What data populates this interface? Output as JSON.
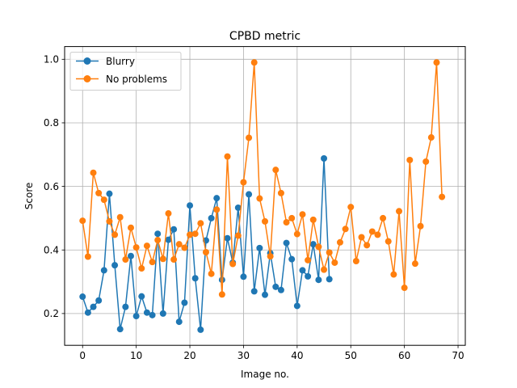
{
  "chart_data": {
    "type": "line",
    "title": "CPBD metric",
    "xlabel": "Image no.",
    "ylabel": "Score",
    "xlim": [
      -3.35,
      71.35
    ],
    "ylim": [
      0.1,
      1.04
    ],
    "xticks": [
      0,
      10,
      20,
      30,
      40,
      50,
      60,
      70
    ],
    "yticks": [
      0.2,
      0.4,
      0.6,
      0.8,
      1.0
    ],
    "xtick_labels": [
      "0",
      "10",
      "20",
      "30",
      "40",
      "50",
      "60",
      "70"
    ],
    "ytick_labels": [
      "0.2",
      "0.4",
      "0.6",
      "0.8",
      "1.0"
    ],
    "grid": true,
    "legend_position": "top-left",
    "series": [
      {
        "name": "Blurry",
        "color": "#1f77b4",
        "marker": "circle",
        "x": [
          0,
          1,
          2,
          3,
          4,
          5,
          6,
          7,
          8,
          9,
          10,
          11,
          12,
          13,
          14,
          15,
          16,
          17,
          18,
          19,
          20,
          21,
          22,
          23,
          24,
          25,
          26,
          27,
          28,
          29,
          30,
          31,
          32,
          33,
          34,
          35,
          36,
          37,
          38,
          39,
          40,
          41,
          42,
          43,
          44,
          45,
          46
        ],
        "y": [
          0.253,
          0.203,
          0.221,
          0.241,
          0.336,
          0.577,
          0.352,
          0.151,
          0.221,
          0.381,
          0.192,
          0.254,
          0.203,
          0.195,
          0.451,
          0.2,
          0.432,
          0.465,
          0.174,
          0.234,
          0.54,
          0.311,
          0.149,
          0.43,
          0.5,
          0.563,
          0.306,
          0.437,
          0.36,
          0.533,
          0.316,
          0.575,
          0.27,
          0.406,
          0.259,
          0.39,
          0.284,
          0.274,
          0.422,
          0.371,
          0.224,
          0.336,
          0.317,
          0.418,
          0.306,
          0.688,
          0.308
        ]
      },
      {
        "name": "No problems",
        "color": "#ff7f0e",
        "marker": "circle",
        "x": [
          0,
          1,
          2,
          3,
          4,
          5,
          6,
          7,
          8,
          9,
          10,
          11,
          12,
          13,
          14,
          15,
          16,
          17,
          18,
          19,
          20,
          21,
          22,
          23,
          24,
          25,
          26,
          27,
          28,
          29,
          30,
          31,
          32,
          33,
          34,
          35,
          36,
          37,
          38,
          39,
          40,
          41,
          42,
          43,
          44,
          45,
          46,
          47,
          48,
          49,
          50,
          51,
          52,
          53,
          54,
          55,
          56,
          57,
          58,
          59,
          60,
          61,
          62,
          63,
          64,
          65,
          66,
          67
        ],
        "y": [
          0.492,
          0.379,
          0.643,
          0.579,
          0.558,
          0.49,
          0.448,
          0.503,
          0.37,
          0.47,
          0.408,
          0.342,
          0.413,
          0.362,
          0.431,
          0.372,
          0.515,
          0.37,
          0.418,
          0.407,
          0.448,
          0.451,
          0.484,
          0.393,
          0.325,
          0.527,
          0.26,
          0.694,
          0.356,
          0.445,
          0.613,
          0.753,
          0.99,
          0.562,
          0.49,
          0.38,
          0.652,
          0.579,
          0.487,
          0.5,
          0.45,
          0.512,
          0.368,
          0.495,
          0.41,
          0.338,
          0.392,
          0.36,
          0.424,
          0.466,
          0.535,
          0.365,
          0.44,
          0.415,
          0.458,
          0.448,
          0.5,
          0.427,
          0.323,
          0.522,
          0.281,
          0.683,
          0.357,
          0.475,
          0.678,
          0.754,
          0.99,
          0.567
        ]
      }
    ]
  }
}
